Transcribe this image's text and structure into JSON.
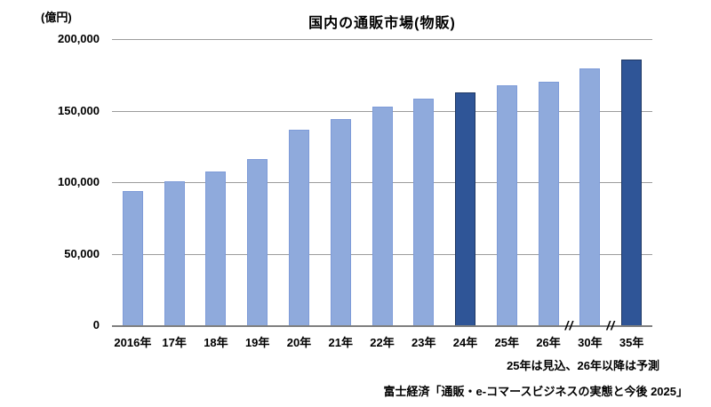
{
  "header": {
    "unit_label": "(億円)",
    "title": "国内の通販市場(物販)"
  },
  "chart_data": {
    "type": "bar",
    "title": "国内の通販市場(物販)",
    "ylabel": "億円",
    "xlabel": "",
    "categories": [
      "2016年",
      "17年",
      "18年",
      "19年",
      "20年",
      "21年",
      "22年",
      "23年",
      "24年",
      "25年",
      "26年",
      "30年",
      "35年"
    ],
    "values": [
      93500,
      100500,
      107500,
      116000,
      136500,
      144000,
      152500,
      158500,
      163000,
      167500,
      170500,
      179500,
      185500
    ],
    "highlight_indices": [
      8,
      12
    ],
    "ylim": [
      0,
      200000
    ],
    "yticks": [
      0,
      50000,
      100000,
      150000,
      200000
    ],
    "ytick_labels": [
      "0",
      "50,000",
      "100,000",
      "150,000",
      "200,000"
    ],
    "axis_breaks_between": [
      [
        "26年",
        "30年"
      ],
      [
        "30年",
        "35年"
      ]
    ],
    "break_symbol": "//",
    "grid": true,
    "legend": false,
    "colors": {
      "bar": "#8FAADC",
      "bar_border": "#7E9BD8",
      "highlight_bar": "#2F5597",
      "highlight_border": "#1F3864",
      "gridline": "#9c9c9c",
      "axis": "#7f7f7f"
    }
  },
  "footnotes": {
    "estimate_note": "25年は見込、26年以降は予測",
    "source": "富士経済「通販・e-コマースビジネスの実態と今後 2025」"
  }
}
